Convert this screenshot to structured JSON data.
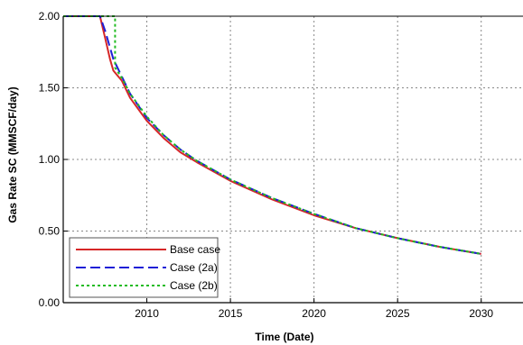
{
  "chart_data": {
    "type": "line",
    "xlabel": "Time (Date)",
    "ylabel": "Gas Rate SC (MMSCF/day)",
    "xlim": [
      2005,
      2032.5
    ],
    "ylim": [
      0,
      2
    ],
    "x_ticks": [
      "2010",
      "2015",
      "2020",
      "2025",
      "2030"
    ],
    "y_ticks": [
      "0.00",
      "0.50",
      "1.00",
      "1.50",
      "2.00"
    ],
    "grid": true,
    "legend_position": "bottom-left",
    "series": [
      {
        "name": "Base case",
        "color": "#d62728",
        "dash": "solid",
        "x": [
          2005,
          2007.2,
          2007.5,
          2007.8,
          2008.0,
          2008.5,
          2009.0,
          2010.0,
          2011.0,
          2012.0,
          2013.0,
          2015.0,
          2017.5,
          2020.0,
          2022.5,
          2025.0,
          2027.5,
          2030.0
        ],
        "y": [
          2.0,
          2.0,
          1.85,
          1.7,
          1.62,
          1.55,
          1.43,
          1.27,
          1.15,
          1.05,
          0.98,
          0.85,
          0.72,
          0.61,
          0.52,
          0.45,
          0.39,
          0.34
        ]
      },
      {
        "name": "Case (2a)",
        "color": "#1f1fd6",
        "dash": "long-dash",
        "x": [
          2005,
          2007.2,
          2007.5,
          2008.0,
          2008.5,
          2009.0,
          2010.0,
          2011.0,
          2012.0,
          2013.0,
          2015.0,
          2017.5,
          2020.0,
          2022.5,
          2025.0,
          2027.5,
          2030.0
        ],
        "y": [
          2.0,
          2.0,
          1.9,
          1.7,
          1.58,
          1.46,
          1.29,
          1.17,
          1.07,
          0.99,
          0.86,
          0.73,
          0.62,
          0.52,
          0.45,
          0.39,
          0.34
        ]
      },
      {
        "name": "Case (2b)",
        "color": "#22bb22",
        "dash": "dotted",
        "x": [
          2005,
          2008.1,
          2008.1,
          2008.5,
          2009.0,
          2010.0,
          2011.0,
          2012.0,
          2013.0,
          2015.0,
          2017.5,
          2020.0,
          2022.5,
          2025.0,
          2027.5,
          2030.0
        ],
        "y": [
          2.0,
          2.0,
          1.64,
          1.57,
          1.46,
          1.3,
          1.17,
          1.07,
          0.99,
          0.86,
          0.73,
          0.62,
          0.52,
          0.45,
          0.39,
          0.34
        ]
      }
    ]
  }
}
